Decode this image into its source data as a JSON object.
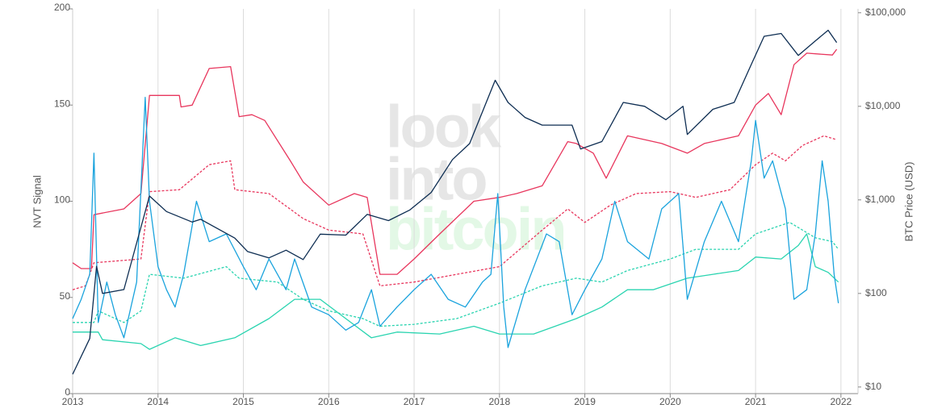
{
  "chart_data": {
    "type": "line",
    "ylabel": "NVT Signal",
    "y2label": "BTC Price (USD)",
    "watermark": [
      "look",
      "into",
      "bitcoin"
    ],
    "xlim": [
      2013,
      2022.2
    ],
    "xticks": [
      2013,
      2014,
      2015,
      2016,
      2017,
      2018,
      2019,
      2020,
      2021,
      2022
    ],
    "ylim": [
      0,
      200
    ],
    "yticks": [
      0,
      50,
      100,
      150,
      200
    ],
    "y2lim": [
      8.5,
      110000
    ],
    "y2log": true,
    "y2ticks": [
      {
        "value": 10,
        "label": "$10"
      },
      {
        "value": 100,
        "label": "$100"
      },
      {
        "value": 1000,
        "label": "$1,000"
      },
      {
        "value": 10000,
        "label": "$10,000"
      },
      {
        "value": 100000,
        "label": "$100,000"
      }
    ],
    "grid": true,
    "series": [
      {
        "color": "#2ad4b0",
        "dash": false,
        "x": [
          2013.0,
          2013.3,
          2013.35,
          2013.8,
          2013.9,
          2014.2,
          2014.5,
          2014.9,
          2015.3,
          2015.6,
          2015.9,
          2016.2,
          2016.5,
          2016.8,
          2017.3,
          2017.7,
          2018.0,
          2018.4,
          2018.9,
          2019.2,
          2019.5,
          2019.8,
          2020.2,
          2020.5,
          2020.8,
          2021.0,
          2021.3,
          2021.5,
          2021.6,
          2021.7,
          2021.85,
          2021.97
        ],
        "values": [
          32,
          32,
          28,
          26,
          23,
          29,
          25,
          29,
          39,
          49,
          49,
          39,
          29,
          32,
          31,
          35,
          31,
          31,
          39,
          45,
          54,
          54,
          60,
          62,
          64,
          71,
          70,
          77,
          83,
          66,
          63,
          58
        ]
      },
      {
        "color": "#2ad4b0",
        "dash": true,
        "x": [
          2013.0,
          2013.25,
          2013.3,
          2013.6,
          2013.8,
          2013.9,
          2014.3,
          2014.8,
          2014.95,
          2015.4,
          2015.7,
          2016.0,
          2016.4,
          2016.6,
          2017.0,
          2017.5,
          2018.0,
          2018.5,
          2018.9,
          2019.2,
          2019.5,
          2020.0,
          2020.3,
          2020.8,
          2021.0,
          2021.4,
          2021.7,
          2021.9,
          2021.97
        ],
        "values": [
          37,
          37,
          43,
          37,
          43,
          62,
          60,
          66,
          60,
          58,
          49,
          43,
          39,
          35,
          36,
          39,
          47,
          56,
          60,
          58,
          64,
          70,
          75,
          75,
          83,
          89,
          81,
          79,
          75
        ]
      },
      {
        "color": "#e8365d",
        "dash": true,
        "x": [
          2013.0,
          2013.15,
          2013.25,
          2013.8,
          2013.9,
          2014.25,
          2014.6,
          2014.85,
          2014.9,
          2015.3,
          2015.7,
          2016.0,
          2016.4,
          2016.6,
          2017.0,
          2017.5,
          2018.0,
          2018.5,
          2018.8,
          2019.0,
          2019.3,
          2019.6,
          2020.0,
          2020.3,
          2020.7,
          2021.0,
          2021.2,
          2021.35,
          2021.55,
          2021.8,
          2021.95
        ],
        "values": [
          54,
          56,
          68,
          70,
          105,
          106,
          119,
          121,
          106,
          104,
          91,
          85,
          83,
          56,
          58,
          62,
          66,
          85,
          96,
          89,
          98,
          104,
          105,
          102,
          106,
          119,
          125,
          121,
          129,
          134,
          132
        ]
      },
      {
        "color": "#e8365d",
        "dash": false,
        "x": [
          2013.0,
          2013.1,
          2013.22,
          2013.25,
          2013.6,
          2013.8,
          2013.9,
          2014.25,
          2014.27,
          2014.4,
          2014.6,
          2014.85,
          2014.95,
          2015.1,
          2015.25,
          2015.55,
          2015.7,
          2016.0,
          2016.3,
          2016.45,
          2016.6,
          2016.8,
          2017.0,
          2017.3,
          2017.7,
          2018.0,
          2018.2,
          2018.5,
          2018.8,
          2018.9,
          2019.1,
          2019.25,
          2019.5,
          2019.9,
          2020.2,
          2020.4,
          2020.8,
          2021.0,
          2021.15,
          2021.3,
          2021.45,
          2021.6,
          2021.9,
          2021.95
        ],
        "values": [
          68,
          65,
          65,
          93,
          96,
          104,
          155,
          155,
          149,
          150,
          169,
          170,
          144,
          145,
          142,
          121,
          110,
          98,
          104,
          102,
          62,
          62,
          70,
          83,
          100,
          102,
          104,
          108,
          131,
          130,
          125,
          112,
          134,
          130,
          125,
          130,
          134,
          150,
          156,
          145,
          171,
          177,
          176,
          179
        ]
      },
      {
        "color": "#1aa3dd",
        "dash": false,
        "x": [
          2013.0,
          2013.1,
          2013.2,
          2013.25,
          2013.3,
          2013.4,
          2013.5,
          2013.6,
          2013.75,
          2013.85,
          2013.9,
          2014.0,
          2014.1,
          2014.2,
          2014.3,
          2014.45,
          2014.6,
          2014.8,
          2015.0,
          2015.15,
          2015.3,
          2015.5,
          2015.6,
          2015.8,
          2016.0,
          2016.2,
          2016.35,
          2016.5,
          2016.6,
          2016.8,
          2017.0,
          2017.2,
          2017.4,
          2017.6,
          2017.8,
          2017.9,
          2017.98,
          2018.05,
          2018.1,
          2018.3,
          2018.55,
          2018.7,
          2018.85,
          2019.0,
          2019.2,
          2019.35,
          2019.5,
          2019.75,
          2019.9,
          2020.1,
          2020.2,
          2020.4,
          2020.6,
          2020.8,
          2020.95,
          2021.0,
          2021.1,
          2021.2,
          2021.35,
          2021.45,
          2021.6,
          2021.7,
          2021.78,
          2021.85,
          2021.92,
          2021.97
        ],
        "values": [
          39,
          49,
          62,
          125,
          37,
          58,
          41,
          29,
          58,
          154,
          100,
          66,
          54,
          45,
          62,
          100,
          79,
          83,
          66,
          54,
          70,
          54,
          70,
          45,
          41,
          33,
          37,
          54,
          35,
          45,
          54,
          62,
          49,
          45,
          58,
          62,
          104,
          45,
          24,
          54,
          83,
          79,
          41,
          54,
          70,
          100,
          79,
          70,
          96,
          104,
          49,
          79,
          100,
          79,
          121,
          142,
          112,
          121,
          96,
          49,
          54,
          83,
          121,
          100,
          62,
          47
        ]
      },
      {
        "color": "#0d2d52",
        "dash": false,
        "axis": "y2",
        "x": [
          2013.0,
          2013.2,
          2013.28,
          2013.35,
          2013.6,
          2013.9,
          2014.1,
          2014.4,
          2014.5,
          2014.9,
          2015.05,
          2015.3,
          2015.5,
          2015.7,
          2015.9,
          2016.2,
          2016.45,
          2016.7,
          2016.95,
          2017.2,
          2017.45,
          2017.65,
          2017.95,
          2018.1,
          2018.3,
          2018.5,
          2018.85,
          2018.95,
          2019.2,
          2019.45,
          2019.7,
          2019.95,
          2020.15,
          2020.2,
          2020.5,
          2020.75,
          2020.95,
          2021.1,
          2021.3,
          2021.5,
          2021.7,
          2021.85,
          2021.95
        ],
        "values": [
          13.7,
          33,
          195,
          100,
          110,
          1100,
          750,
          580,
          620,
          390,
          280,
          240,
          290,
          230,
          430,
          420,
          700,
          600,
          780,
          1200,
          2700,
          4000,
          19000,
          11000,
          7600,
          6300,
          6300,
          3500,
          4200,
          11000,
          10000,
          7200,
          10000,
          5000,
          9300,
          11000,
          28000,
          56000,
          60000,
          35000,
          50000,
          65000,
          48000
        ]
      }
    ]
  }
}
